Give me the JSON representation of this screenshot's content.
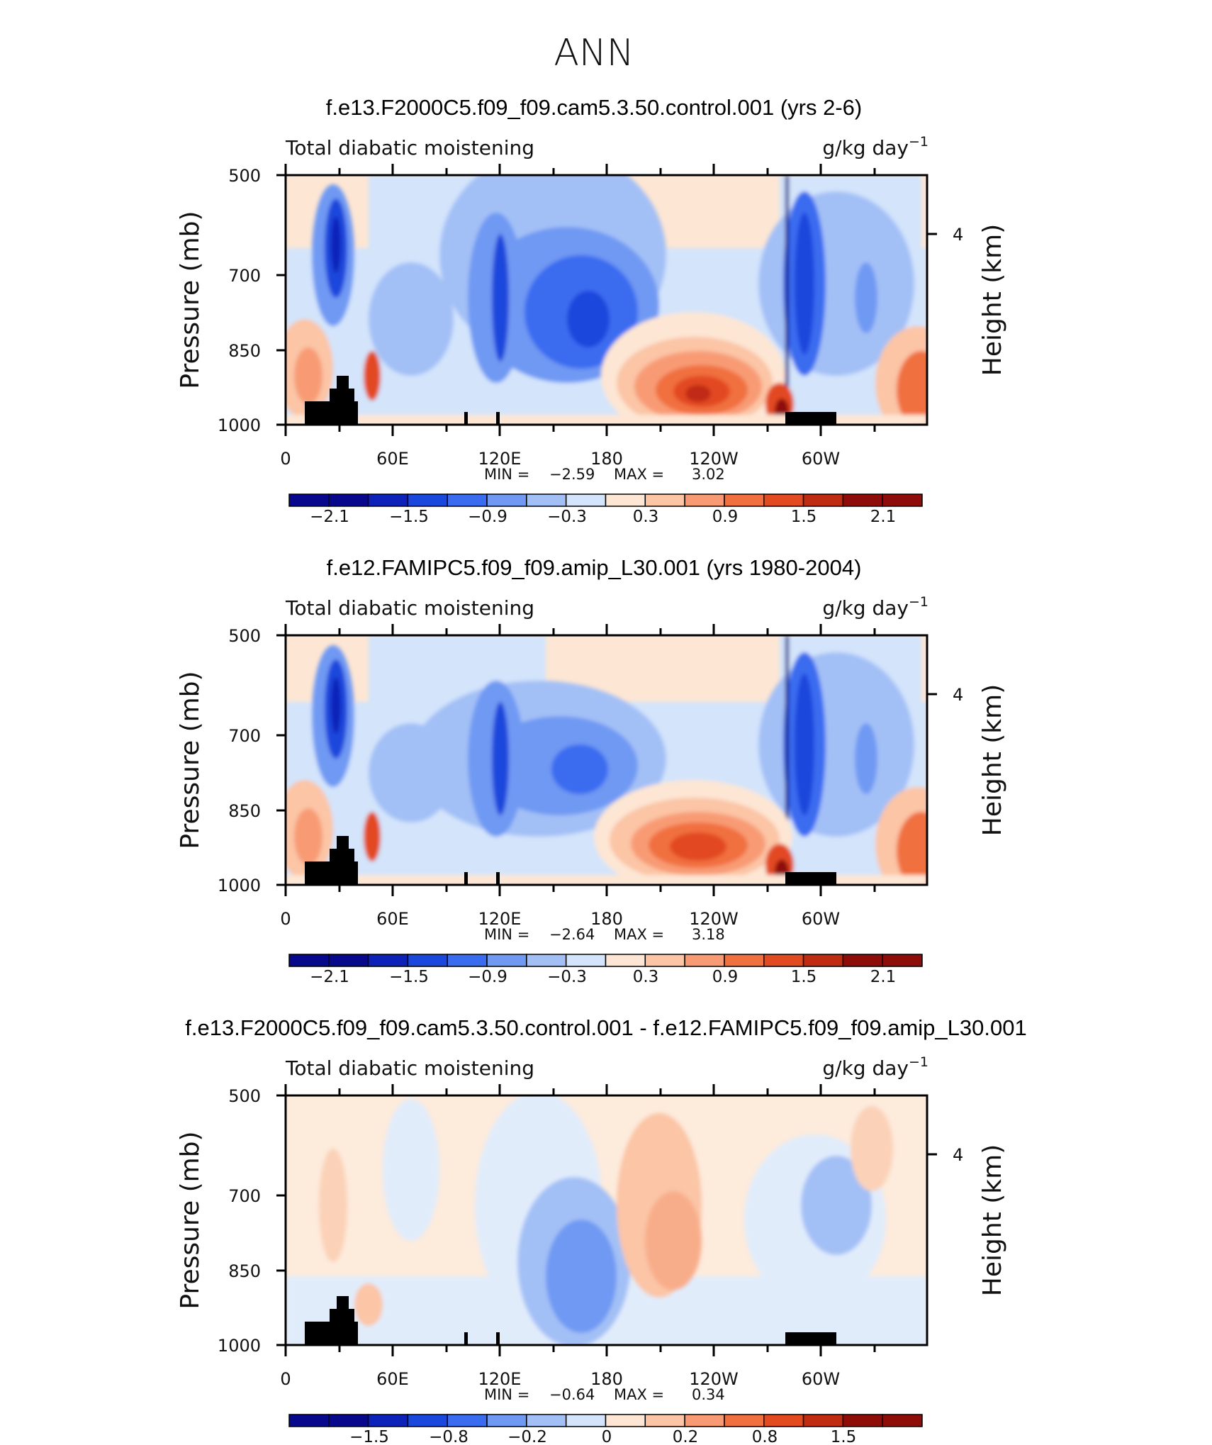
{
  "figure": {
    "main_title": "ANN",
    "colors": {
      "blue_ramp": [
        "#08088c",
        "#0d22b8",
        "#1a47dc",
        "#3a6cf0",
        "#6f99f3",
        "#a3c0f6",
        "#d3e4fb"
      ],
      "red_ramp": [
        "#fde6d4",
        "#fbc5a6",
        "#f89b75",
        "#f1703f",
        "#e24a20",
        "#c02c12",
        "#8e0d08"
      ],
      "terrain": "#000000"
    }
  },
  "chart_data": [
    {
      "type": "heatmap",
      "title": "f.e13.F2000C5.f09_f09.cam5.3.50.control.001 (yrs 2-6)",
      "left_label": "Total diabatic moistening",
      "units": "g/kg day",
      "units_exp": "−1",
      "ylabel": "Pressure (mb)",
      "ylabel_right": "Height (km)",
      "yticks": [
        "500",
        "700",
        "850",
        "1000"
      ],
      "ytick_values": [
        500,
        700,
        850,
        1000
      ],
      "ylim": [
        500,
        1000
      ],
      "yticks_right": [
        "4"
      ],
      "xticks": [
        "0",
        "60E",
        "120E",
        "180",
        "120W",
        "60W"
      ],
      "xtick_values": [
        0,
        60,
        120,
        180,
        240,
        300
      ],
      "xlim": [
        0,
        360
      ],
      "min_label": "MIN =",
      "min_value": "−2.59",
      "max_label": "MAX =",
      "max_value": "3.02",
      "colorbar_labels": [
        "−2.1",
        "−1.5",
        "−0.9",
        "−0.3",
        "0.3",
        "0.9",
        "1.5",
        "2.1"
      ],
      "colorbar_levels": 16
    },
    {
      "type": "heatmap",
      "title": "f.e12.FAMIPC5.f09_f09.amip_L30.001 (yrs 1980-2004)",
      "left_label": "Total diabatic moistening",
      "units": "g/kg day",
      "units_exp": "−1",
      "ylabel": "Pressure (mb)",
      "ylabel_right": "Height (km)",
      "yticks": [
        "500",
        "700",
        "850",
        "1000"
      ],
      "ytick_values": [
        500,
        700,
        850,
        1000
      ],
      "ylim": [
        500,
        1000
      ],
      "yticks_right": [
        "4"
      ],
      "xticks": [
        "0",
        "60E",
        "120E",
        "180",
        "120W",
        "60W"
      ],
      "xtick_values": [
        0,
        60,
        120,
        180,
        240,
        300
      ],
      "xlim": [
        0,
        360
      ],
      "min_label": "MIN =",
      "min_value": "−2.64",
      "max_label": "MAX =",
      "max_value": "3.18",
      "colorbar_labels": [
        "−2.1",
        "−1.5",
        "−0.9",
        "−0.3",
        "0.3",
        "0.9",
        "1.5",
        "2.1"
      ],
      "colorbar_levels": 16
    },
    {
      "type": "heatmap",
      "title": "f.e13.F2000C5.f09_f09.cam5.3.50.control.001 - f.e12.FAMIPC5.f09_f09.amip_L30.001",
      "left_label": "Total diabatic moistening",
      "units": "g/kg day",
      "units_exp": "−1",
      "ylabel": "Pressure (mb)",
      "ylabel_right": "Height (km)",
      "yticks": [
        "500",
        "700",
        "850",
        "1000"
      ],
      "ytick_values": [
        500,
        700,
        850,
        1000
      ],
      "ylim": [
        500,
        1000
      ],
      "yticks_right": [
        "4"
      ],
      "xticks": [
        "0",
        "60E",
        "120E",
        "180",
        "120W",
        "60W"
      ],
      "xtick_values": [
        0,
        60,
        120,
        180,
        240,
        300
      ],
      "xlim": [
        0,
        360
      ],
      "min_label": "MIN =",
      "min_value": "−0.64",
      "max_label": "MAX =",
      "max_value": "0.34",
      "colorbar_labels": [
        "−1.5",
        "−0.8",
        "−0.2",
        "0",
        "0.2",
        "0.8",
        "1.5"
      ],
      "colorbar_levels": 16
    }
  ]
}
